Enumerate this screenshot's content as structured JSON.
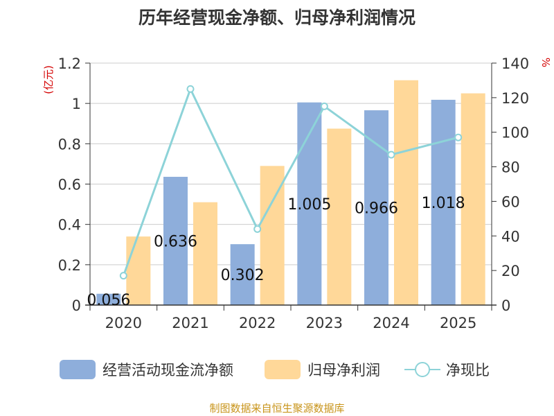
{
  "title": "历年经营现金净额、归母净利润情况",
  "footer": "制图数据来自恒生聚源数据库",
  "chart_data": {
    "type": "bar",
    "title": "历年经营现金净额、归母净利润情况",
    "categories": [
      "2020",
      "2021",
      "2022",
      "2023",
      "2024",
      "2025"
    ],
    "ylabel_left": "(亿元)",
    "ylabel_right": "%",
    "ylim_left": [
      0,
      1.2
    ],
    "ylim_right": [
      0,
      140
    ],
    "yticks_left": [
      "0",
      "0.2",
      "0.4",
      "0.6",
      "0.8",
      "1",
      "1.2"
    ],
    "yticks_right": [
      "0",
      "20",
      "40",
      "60",
      "80",
      "100",
      "120",
      "140"
    ],
    "series": [
      {
        "name": "经营活动现金流净额",
        "axis": "left",
        "type": "bar",
        "color": "#8eaedb",
        "values": [
          0.056,
          0.636,
          0.302,
          1.005,
          0.966,
          1.018
        ],
        "labels": [
          "0.056",
          "0.636",
          "0.302",
          "1.005",
          "0.966",
          "1.018"
        ]
      },
      {
        "name": "归母净利润",
        "axis": "left",
        "type": "bar",
        "color": "#ffd899",
        "values": [
          0.34,
          0.51,
          0.69,
          0.875,
          1.115,
          1.05
        ]
      },
      {
        "name": "净现比",
        "axis": "right",
        "type": "line",
        "color": "#8dd3d8",
        "values": [
          17,
          125,
          44,
          115,
          87,
          97
        ]
      }
    ]
  },
  "legend": [
    {
      "label": "经营活动现金流净额"
    },
    {
      "label": "归母净利润"
    },
    {
      "label": "净现比"
    }
  ]
}
